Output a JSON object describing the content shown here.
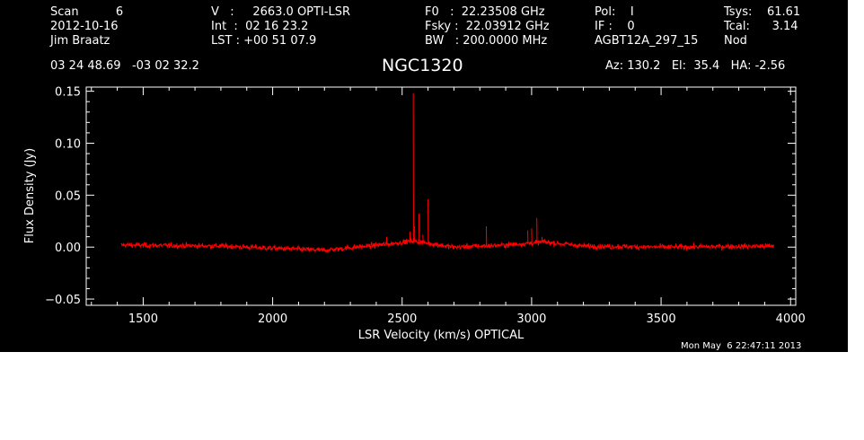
{
  "header": {
    "col1": [
      "Scan          6",
      "2012-10-16",
      "Jim Braatz"
    ],
    "col2": [
      "V   :     2663.0 OPTI-LSR",
      "Int  :  02 16 23.2",
      "LST : +00 51 07.9"
    ],
    "col3": [
      "F0   :  22.23508 GHz",
      "Fsky :  22.03912 GHz",
      "BW   : 200.0000 MHz"
    ],
    "col4": [
      "Pol:    I",
      "IF :    0",
      "AGBT12A_297_15"
    ],
    "col5": [
      "Tsys:    61.61",
      "Tcal:      3.14",
      "Nod"
    ],
    "coords": "03 24 48.69   -03 02 32.2",
    "source": "NGC1320",
    "pointing": "Az: 130.2   El:  35.4   HA: -2.56"
  },
  "timestamp": "Mon May  6 22:47:11 2013",
  "colors": {
    "background": "#000000",
    "axes": "#ffffff",
    "trace": "#ff0000",
    "margin": "#ffffff"
  },
  "chart_data": {
    "type": "line",
    "title": "NGC1320",
    "xlabel": "LSR Velocity (km/s) OPTICAL",
    "ylabel": "Flux Density (Jy)",
    "xlim": [
      1280,
      4020
    ],
    "ylim": [
      -0.056,
      0.154
    ],
    "x_ticks": [
      1500,
      2000,
      2500,
      3000,
      3500,
      4000
    ],
    "y_ticks": [
      -0.05,
      0.0,
      0.05,
      0.1,
      0.15
    ],
    "x_tick_labels": [
      "1500",
      "2000",
      "2500",
      "3000",
      "3500",
      "4000"
    ],
    "y_tick_labels": [
      "−0.05",
      "0.00",
      "0.05",
      "0.10",
      "0.15"
    ],
    "x_range": [
      1415,
      3935
    ],
    "noise_rms": 0.0025,
    "baseline": [
      [
        1415,
        0.002
      ],
      [
        1800,
        0.001
      ],
      [
        2200,
        -0.003
      ],
      [
        2450,
        0.003
      ],
      [
        2540,
        0.006
      ],
      [
        2620,
        0.003
      ],
      [
        2700,
        0.0
      ],
      [
        2900,
        0.002
      ],
      [
        3050,
        0.005
      ],
      [
        3200,
        0.001
      ],
      [
        3500,
        0.0
      ],
      [
        3935,
        0.001
      ]
    ],
    "features": [
      {
        "v": 2543,
        "peak": 0.148
      },
      {
        "v": 2565,
        "peak": 0.032
      },
      {
        "v": 2600,
        "peak": 0.046
      },
      {
        "v": 2548,
        "peak": 0.02
      },
      {
        "v": 2530,
        "peak": 0.015
      },
      {
        "v": 2580,
        "peak": 0.012
      },
      {
        "v": 2825,
        "peak": 0.02
      },
      {
        "v": 2985,
        "peak": 0.016
      },
      {
        "v": 3000,
        "peak": 0.018
      },
      {
        "v": 3020,
        "peak": 0.028
      },
      {
        "v": 3040,
        "peak": 0.01
      },
      {
        "v": 2440,
        "peak": 0.01
      }
    ]
  }
}
